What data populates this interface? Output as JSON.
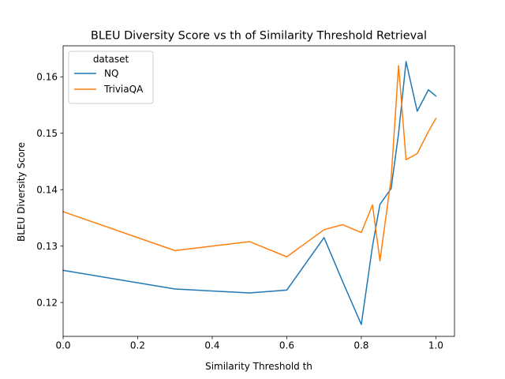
{
  "chart_data": {
    "type": "line",
    "title": "BLEU Diversity Score vs th of Similarity Threshold Retrieval",
    "xlabel": "Similarity Threshold th",
    "ylabel": "BLEU Diversity Score",
    "xlim": [
      0.0,
      1.05
    ],
    "ylim": [
      0.114,
      0.1655
    ],
    "xticks": [
      0.0,
      0.2,
      0.4,
      0.6,
      0.8,
      1.0
    ],
    "xtick_labels": [
      "0.0",
      "0.2",
      "0.4",
      "0.6",
      "0.8",
      "1.0"
    ],
    "yticks": [
      0.12,
      0.13,
      0.14,
      0.15,
      0.16
    ],
    "ytick_labels": [
      "0.12",
      "0.13",
      "0.14",
      "0.15",
      "0.16"
    ],
    "grid": false,
    "legend": {
      "title": "dataset",
      "placement": "top-left"
    },
    "series": [
      {
        "name": "NQ",
        "color": "#1f77b4",
        "x": [
          0.0,
          0.3,
          0.5,
          0.6,
          0.7,
          0.75,
          0.8,
          0.83,
          0.85,
          0.88,
          0.9,
          0.92,
          0.95,
          0.98,
          1.0
        ],
        "y": [
          0.1257,
          0.1224,
          0.1217,
          0.1222,
          0.1315,
          0.1237,
          0.1161,
          0.13,
          0.1374,
          0.1402,
          0.15,
          0.1627,
          0.1539,
          0.1577,
          0.1566
        ]
      },
      {
        "name": "TriviaQA",
        "color": "#ff7f0e",
        "x": [
          0.0,
          0.3,
          0.5,
          0.6,
          0.7,
          0.75,
          0.8,
          0.83,
          0.85,
          0.88,
          0.9,
          0.92,
          0.95,
          0.98,
          1.0
        ],
        "y": [
          0.1361,
          0.1292,
          0.1308,
          0.1281,
          0.1329,
          0.1338,
          0.1324,
          0.1373,
          0.1274,
          0.142,
          0.162,
          0.1453,
          0.1464,
          0.1503,
          0.1526
        ]
      }
    ]
  }
}
